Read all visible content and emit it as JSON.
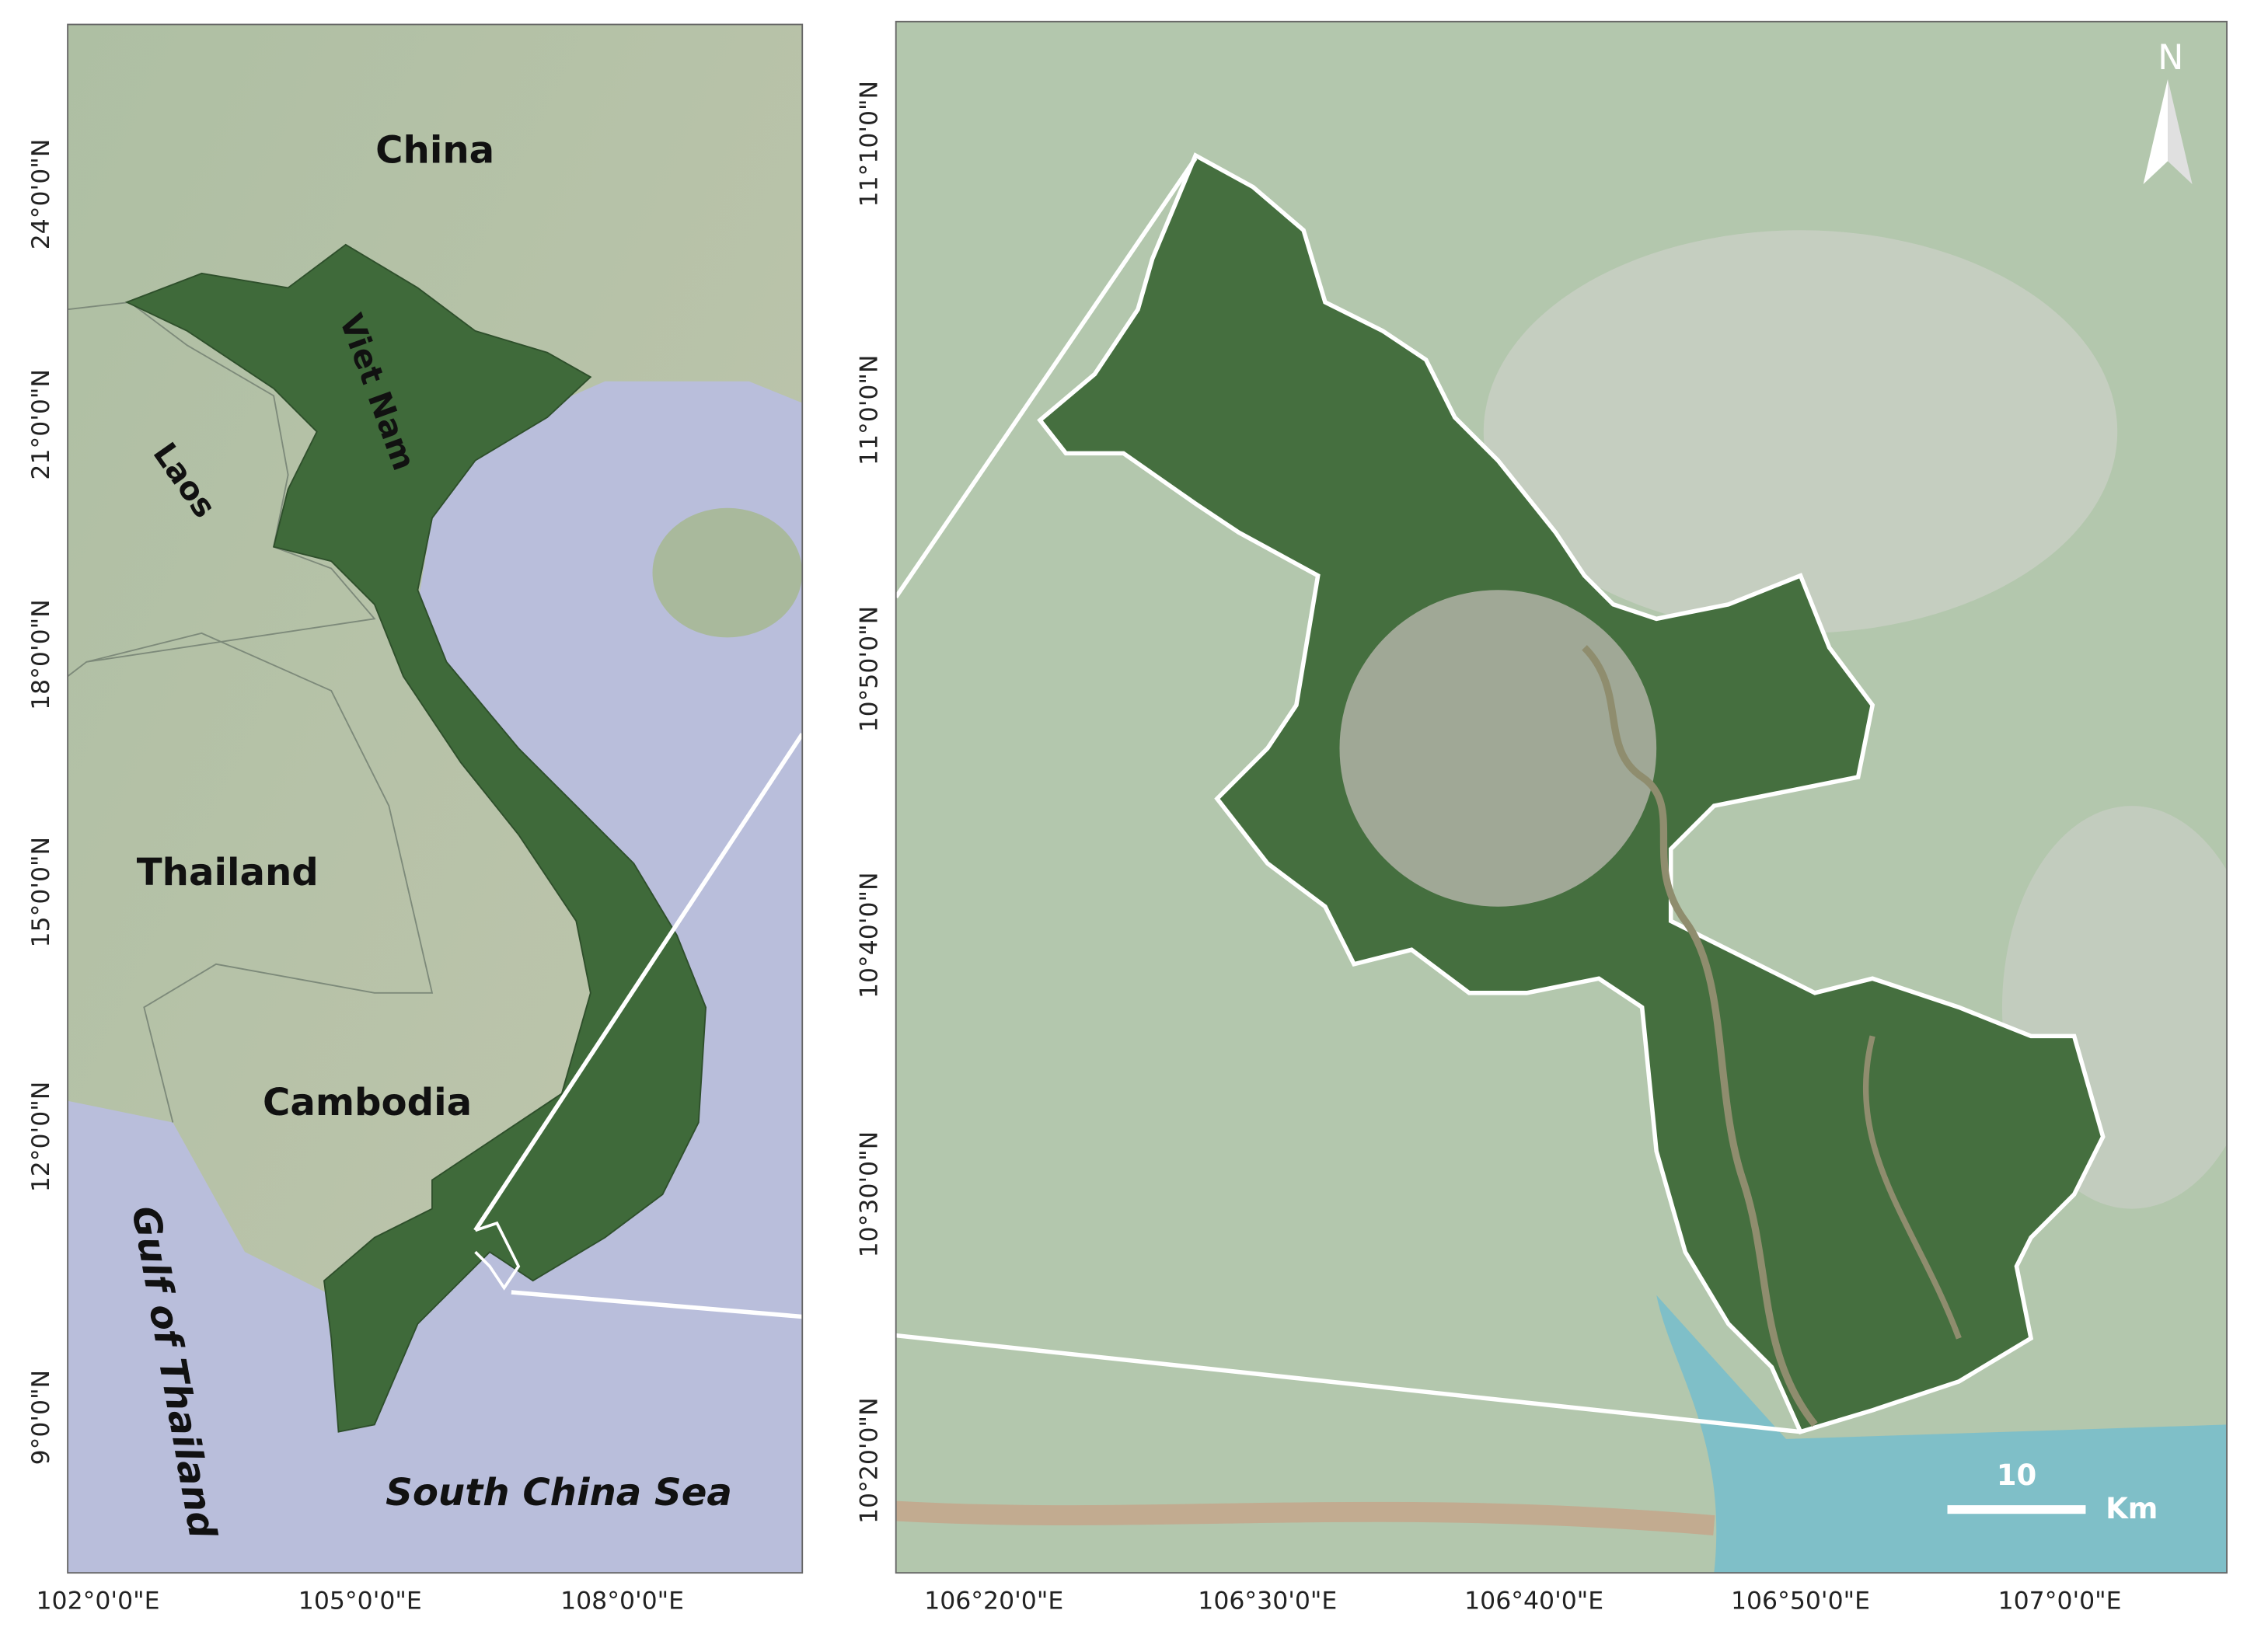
{
  "left_map": {
    "labels": {
      "china": "China",
      "viet_nam": "Viet Nam",
      "laos": "Laos",
      "thailand": "Thailand",
      "cambodia": "Cambodia",
      "gulf": "Gulf of Thailand",
      "sea": "South China Sea"
    },
    "x_tick_labels": [
      "102°0'0\"E",
      "105°0'0\"E",
      "108°0'0\"E"
    ],
    "y_tick_labels": [
      "24°0'0\"N",
      "21°0'0\"N",
      "18°0'0\"N",
      "15°0'0\"N",
      "12°0'0\"N",
      "9°0'0\"N"
    ]
  },
  "right_map": {
    "x_tick_labels": [
      "106°20'0\"E",
      "106°30'0\"E",
      "106°40'0\"E",
      "106°50'0\"E",
      "107°0'0\"E"
    ],
    "y_tick_labels": [
      "11°10'0\"N",
      "11°0'0\"N",
      "10°50'0\"N",
      "10°40'0\"N",
      "10°30'0\"N",
      "10°20'0\"N"
    ],
    "north": "N",
    "scale_value": "10",
    "scale_unit": "Km"
  }
}
